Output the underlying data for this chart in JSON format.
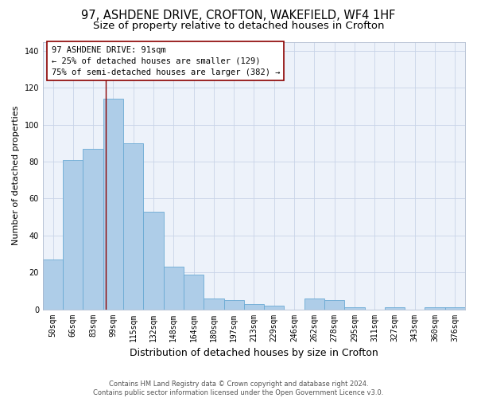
{
  "title_line1": "97, ASHDENE DRIVE, CROFTON, WAKEFIELD, WF4 1HF",
  "title_line2": "Size of property relative to detached houses in Crofton",
  "xlabel": "Distribution of detached houses by size in Crofton",
  "ylabel": "Number of detached properties",
  "bar_labels": [
    "50sqm",
    "66sqm",
    "83sqm",
    "99sqm",
    "115sqm",
    "132sqm",
    "148sqm",
    "164sqm",
    "180sqm",
    "197sqm",
    "213sqm",
    "229sqm",
    "246sqm",
    "262sqm",
    "278sqm",
    "295sqm",
    "311sqm",
    "327sqm",
    "343sqm",
    "360sqm",
    "376sqm"
  ],
  "bar_heights": [
    27,
    81,
    87,
    114,
    90,
    53,
    23,
    19,
    6,
    5,
    3,
    2,
    0,
    6,
    5,
    1,
    0,
    1,
    0,
    1,
    1
  ],
  "bar_color": "#aecde8",
  "bar_edge_color": "#6aaad4",
  "annotation_line1": "97 ASHDENE DRIVE: 91sqm",
  "annotation_line2": "← 25% of detached houses are smaller (129)",
  "annotation_line3": "75% of semi-detached houses are larger (382) →",
  "red_line_x": 2.62,
  "ylim": [
    0,
    145
  ],
  "yticks": [
    0,
    20,
    40,
    60,
    80,
    100,
    120,
    140
  ],
  "grid_color": "#c8d4e8",
  "background_color": "#edf2fa",
  "footer_text": "Contains HM Land Registry data © Crown copyright and database right 2024.\nContains public sector information licensed under the Open Government Licence v3.0.",
  "title_fontsize": 10.5,
  "subtitle_fontsize": 9.5,
  "xlabel_fontsize": 9,
  "ylabel_fontsize": 8,
  "tick_fontsize": 7,
  "annotation_fontsize": 7.5,
  "footer_fontsize": 6
}
